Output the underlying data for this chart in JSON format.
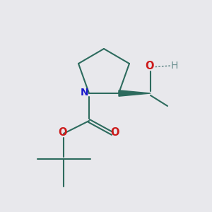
{
  "background_color": "#e8e8ec",
  "bond_color": "#2d6b5e",
  "N_color": "#1a1acc",
  "O_color": "#cc1a1a",
  "H_color": "#6b8f8f",
  "line_width": 1.5,
  "figsize": [
    3.0,
    3.0
  ],
  "dpi": 100,
  "xlim": [
    0,
    10
  ],
  "ylim": [
    0,
    10
  ]
}
